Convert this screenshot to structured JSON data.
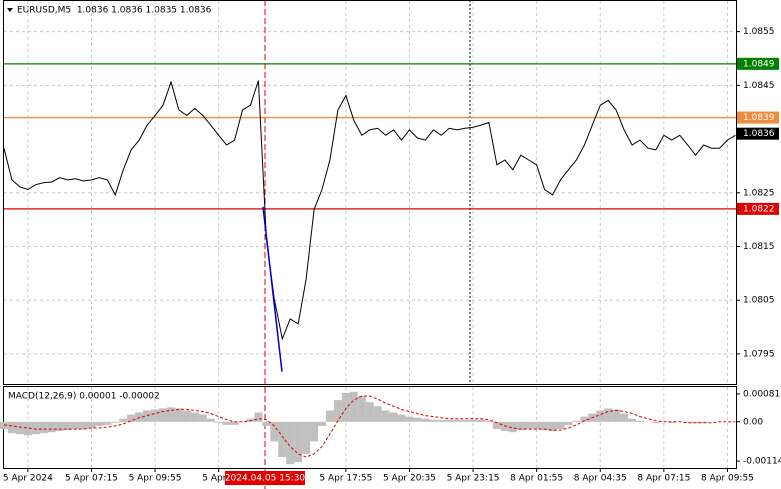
{
  "chart_data": [
    {
      "type": "line",
      "title": "EURUSD,M5  1.0836 1.0836 1.0835 1.0836",
      "categories": [
        null,
        null,
        null,
        "5 Apr 2024",
        null,
        null,
        null,
        null,
        null,
        null,
        null,
        "5 Apr 07:15",
        null,
        null,
        null,
        null,
        null,
        null,
        null,
        "5 Apr 09:55",
        null,
        null,
        null,
        null,
        null,
        null,
        null,
        "5 Apr 1",
        null,
        null,
        null,
        null,
        null,
        null,
        null,
        null,
        null,
        null,
        null,
        null,
        null,
        null,
        null,
        "5 Apr 17:55",
        null,
        null,
        null,
        null,
        null,
        null,
        null,
        "5 Apr 20:35",
        null,
        null,
        null,
        null,
        null,
        null,
        null,
        "5 Apr 23:15",
        null,
        null,
        null,
        null,
        null,
        null,
        null,
        "8 Apr 01:55",
        null,
        null,
        null,
        null,
        null,
        null,
        null,
        "8 Apr 04:35",
        null,
        null,
        null,
        null,
        null,
        null,
        null,
        "8 Apr 07:15",
        null,
        null,
        null,
        null,
        null,
        null,
        null,
        "8 Apr 09:55",
        null
      ],
      "values": [
        1.08333,
        1.08274,
        1.08261,
        1.08256,
        1.08265,
        1.08269,
        1.0827,
        1.08278,
        1.08274,
        1.08276,
        1.08272,
        1.08274,
        1.08278,
        1.08274,
        1.08246,
        1.08293,
        1.0833,
        1.08348,
        1.08376,
        1.08394,
        1.08413,
        1.08456,
        1.08404,
        1.08394,
        1.08407,
        1.08394,
        1.08376,
        1.08357,
        1.08339,
        1.08348,
        1.08404,
        1.08413,
        1.08459,
        1.08163,
        1.08052,
        1.07978,
        1.08015,
        1.08006,
        1.08089,
        1.08219,
        1.08256,
        1.08311,
        1.08404,
        1.08431,
        1.08385,
        1.08357,
        1.08367,
        1.0837,
        1.08357,
        1.08367,
        1.08348,
        1.08367,
        1.08352,
        1.08348,
        1.08367,
        1.08357,
        1.0837,
        1.08367,
        1.0837,
        1.08372,
        1.08376,
        1.08381,
        1.08302,
        1.08311,
        1.08293,
        1.0832,
        1.08311,
        1.08302,
        1.08256,
        1.08246,
        1.08274,
        1.08293,
        1.08311,
        1.08339,
        1.08376,
        1.08413,
        1.08422,
        1.08404,
        1.08367,
        1.08339,
        1.08348,
        1.08333,
        1.0833,
        1.08357,
        1.08348,
        1.08357,
        1.08339,
        1.0832,
        1.08339,
        1.08333,
        1.08333,
        1.08348,
        1.08357
      ],
      "color": "#000000",
      "ylim": [
        1.07894,
        1.08607
      ],
      "yticks": [
        1.0855,
        1.0845,
        1.0825,
        1.0815,
        1.0805,
        1.0795
      ],
      "grid": true,
      "levels": [
        {
          "value": 1.0849,
          "color": "#008000"
        },
        {
          "value": 1.0839,
          "color": "#f08a3c"
        },
        {
          "value": 1.0822,
          "color": "#e00000"
        }
      ],
      "last": {
        "value": 1.0836,
        "color": "#000000"
      },
      "trendline": {
        "values": [
          1.08224,
          1.07917
        ],
        "color": "#0000cc"
      },
      "crosshair_label": "2024.04.05 15:30"
    },
    {
      "type": "macd",
      "title": "MACD(12,26,9) 0.00001 -0.00002",
      "histogram": {
        "color": "#c0c0c0",
        "values": [
          -0.00021,
          -0.00033,
          -0.00036,
          -0.00039,
          -0.00036,
          -0.00033,
          -0.0003,
          -0.00027,
          -0.00024,
          -0.00021,
          -0.00021,
          -0.00018,
          -0.00012,
          -9e-05,
          -3e-05,
          9e-05,
          0.00021,
          0.00027,
          0.00033,
          0.00036,
          0.00039,
          0.00042,
          0.00039,
          0.00033,
          0.00027,
          0.00021,
          9e-05,
          -3e-05,
          -9e-05,
          -9e-05,
          0,
          9e-05,
          0.00027,
          -0.00012,
          -0.00057,
          -0.00102,
          -0.00123,
          -0.00117,
          -0.00093,
          -0.00057,
          -0.00012,
          0.00033,
          0.00063,
          0.00084,
          0.00087,
          0.00075,
          0.00057,
          0.00045,
          0.00033,
          0.00027,
          0.00021,
          0.00015,
          0.00012,
          9e-05,
          6e-05,
          6e-05,
          6e-05,
          6e-05,
          6e-05,
          6e-05,
          6e-05,
          3e-05,
          -0.00021,
          -0.00027,
          -0.0003,
          -0.00024,
          -0.00021,
          -0.00021,
          -0.00024,
          -0.00027,
          -0.00021,
          -9e-05,
          3e-05,
          0.00015,
          0.00024,
          0.00033,
          0.00039,
          0.00036,
          0.00024,
          9e-05,
          3e-05,
          0,
          -3e-05,
          0,
          -3e-05,
          0,
          -3e-05,
          -3e-05,
          -3e-05,
          0,
          0,
          0,
          0
        ]
      },
      "signal": {
        "color": "#e00000",
        "values": [
          -9e-05,
          -0.00012,
          -0.00015,
          -0.00018,
          -0.00021,
          -0.00021,
          -0.00021,
          -0.00021,
          -0.00021,
          -0.00021,
          -0.00021,
          -0.00018,
          -0.00018,
          -0.00015,
          -0.00012,
          -6e-05,
          3e-05,
          0.00012,
          0.00018,
          0.00024,
          0.0003,
          0.00033,
          0.00036,
          0.00036,
          0.00033,
          0.0003,
          0.00024,
          0.00015,
          6e-05,
          0,
          0,
          3e-05,
          9e-05,
          6e-05,
          -0.00012,
          -0.00042,
          -0.00072,
          -0.00093,
          -0.00102,
          -0.00093,
          -0.00072,
          -0.00036,
          3e-05,
          0.00039,
          0.00063,
          0.00075,
          0.00075,
          0.00066,
          0.00054,
          0.00045,
          0.00036,
          0.0003,
          0.00024,
          0.00018,
          0.00015,
          0.00012,
          9e-05,
          9e-05,
          9e-05,
          9e-05,
          9e-05,
          6e-05,
          -3e-05,
          -0.00012,
          -0.00018,
          -0.00021,
          -0.00021,
          -0.00021,
          -0.00021,
          -0.00024,
          -0.00024,
          -0.00018,
          -9e-05,
          3e-05,
          0.00012,
          0.00021,
          0.0003,
          0.00033,
          0.0003,
          0.00024,
          0.00015,
          9e-05,
          3e-05,
          0,
          0,
          0,
          -3e-05,
          -3e-05,
          -3e-05,
          -3e-05,
          0,
          0,
          0
        ]
      },
      "ylim": [
        -0.00134,
        0.00101
      ],
      "yticks": [
        0.00081,
        {
          "value": 0,
          "label": "0.00"
        },
        -0.00114
      ]
    }
  ]
}
